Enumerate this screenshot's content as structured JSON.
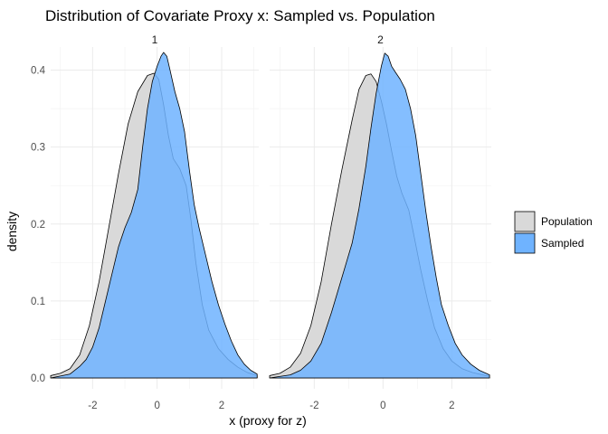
{
  "chart_data": {
    "type": "area",
    "title": "Distribution of Covariate Proxy x: Sampled vs. Population",
    "xlabel": "x (proxy for z)",
    "ylabel": "density",
    "xlim": [
      -3.3,
      3.15
    ],
    "ylim": [
      0,
      0.43
    ],
    "x_ticks": [
      -2,
      0,
      2
    ],
    "x_tick_labels": [
      "-2",
      "0",
      "2"
    ],
    "y_ticks": [
      0.0,
      0.1,
      0.2,
      0.3,
      0.4
    ],
    "y_tick_labels": [
      "0.0",
      "0.1",
      "0.2",
      "0.3",
      "0.4"
    ],
    "grid": true,
    "legend_position": "right",
    "legend": [
      {
        "name": "Population",
        "color": "#d9d9d9"
      },
      {
        "name": "Sampled",
        "color": "#6fb3ff"
      }
    ],
    "panels": [
      {
        "label": "1",
        "series": [
          {
            "name": "Population",
            "points": [
              [
                -3.3,
                0.003
              ],
              [
                -3.0,
                0.006
              ],
              [
                -2.7,
                0.012
              ],
              [
                -2.4,
                0.03
              ],
              [
                -2.1,
                0.068
              ],
              [
                -1.8,
                0.125
              ],
              [
                -1.5,
                0.195
              ],
              [
                -1.2,
                0.265
              ],
              [
                -0.9,
                0.33
              ],
              [
                -0.6,
                0.372
              ],
              [
                -0.3,
                0.393
              ],
              [
                -0.1,
                0.396
              ],
              [
                0.05,
                0.388
              ],
              [
                0.2,
                0.355
              ],
              [
                0.35,
                0.315
              ],
              [
                0.5,
                0.285
              ],
              [
                0.7,
                0.272
              ],
              [
                0.9,
                0.25
              ],
              [
                1.05,
                0.205
              ],
              [
                1.2,
                0.15
              ],
              [
                1.4,
                0.095
              ],
              [
                1.6,
                0.062
              ],
              [
                1.9,
                0.038
              ],
              [
                2.2,
                0.024
              ],
              [
                2.5,
                0.014
              ],
              [
                2.8,
                0.007
              ],
              [
                3.1,
                0.003
              ]
            ]
          },
          {
            "name": "Sampled",
            "points": [
              [
                -3.3,
                0.0
              ],
              [
                -2.7,
                0.005
              ],
              [
                -2.4,
                0.015
              ],
              [
                -2.2,
                0.024
              ],
              [
                -2.0,
                0.04
              ],
              [
                -1.8,
                0.065
              ],
              [
                -1.6,
                0.1
              ],
              [
                -1.4,
                0.135
              ],
              [
                -1.2,
                0.17
              ],
              [
                -1.0,
                0.195
              ],
              [
                -0.8,
                0.215
              ],
              [
                -0.6,
                0.245
              ],
              [
                -0.45,
                0.3
              ],
              [
                -0.3,
                0.35
              ],
              [
                -0.15,
                0.385
              ],
              [
                0.0,
                0.405
              ],
              [
                0.12,
                0.418
              ],
              [
                0.2,
                0.423
              ],
              [
                0.3,
                0.418
              ],
              [
                0.4,
                0.4
              ],
              [
                0.55,
                0.372
              ],
              [
                0.7,
                0.35
              ],
              [
                0.85,
                0.32
              ],
              [
                1.0,
                0.27
              ],
              [
                1.15,
                0.225
              ],
              [
                1.3,
                0.195
              ],
              [
                1.5,
                0.16
              ],
              [
                1.7,
                0.125
              ],
              [
                1.9,
                0.095
              ],
              [
                2.1,
                0.07
              ],
              [
                2.3,
                0.048
              ],
              [
                2.5,
                0.03
              ],
              [
                2.7,
                0.018
              ],
              [
                2.9,
                0.01
              ],
              [
                3.1,
                0.005
              ]
            ]
          }
        ]
      },
      {
        "label": "2",
        "series": [
          {
            "name": "Population",
            "points": [
              [
                -3.3,
                0.003
              ],
              [
                -3.0,
                0.006
              ],
              [
                -2.7,
                0.014
              ],
              [
                -2.4,
                0.032
              ],
              [
                -2.1,
                0.068
              ],
              [
                -1.8,
                0.125
              ],
              [
                -1.5,
                0.2
              ],
              [
                -1.2,
                0.27
              ],
              [
                -0.9,
                0.335
              ],
              [
                -0.7,
                0.375
              ],
              [
                -0.5,
                0.393
              ],
              [
                -0.35,
                0.395
              ],
              [
                -0.2,
                0.385
              ],
              [
                -0.05,
                0.36
              ],
              [
                0.1,
                0.33
              ],
              [
                0.25,
                0.295
              ],
              [
                0.4,
                0.262
              ],
              [
                0.55,
                0.24
              ],
              [
                0.75,
                0.218
              ],
              [
                0.9,
                0.185
              ],
              [
                1.1,
                0.14
              ],
              [
                1.3,
                0.1
              ],
              [
                1.5,
                0.065
              ],
              [
                1.75,
                0.038
              ],
              [
                2.0,
                0.022
              ],
              [
                2.3,
                0.012
              ],
              [
                2.6,
                0.007
              ],
              [
                3.1,
                0.002
              ]
            ]
          },
          {
            "name": "Sampled",
            "points": [
              [
                -3.3,
                0.0
              ],
              [
                -2.7,
                0.004
              ],
              [
                -2.4,
                0.01
              ],
              [
                -2.1,
                0.022
              ],
              [
                -1.8,
                0.045
              ],
              [
                -1.5,
                0.085
              ],
              [
                -1.2,
                0.13
              ],
              [
                -0.9,
                0.175
              ],
              [
                -0.7,
                0.22
              ],
              [
                -0.5,
                0.275
              ],
              [
                -0.35,
                0.325
              ],
              [
                -0.2,
                0.37
              ],
              [
                -0.05,
                0.405
              ],
              [
                0.05,
                0.422
              ],
              [
                0.15,
                0.418
              ],
              [
                0.25,
                0.405
              ],
              [
                0.35,
                0.398
              ],
              [
                0.5,
                0.388
              ],
              [
                0.65,
                0.375
              ],
              [
                0.8,
                0.35
              ],
              [
                0.95,
                0.315
              ],
              [
                1.1,
                0.265
              ],
              [
                1.25,
                0.215
              ],
              [
                1.4,
                0.17
              ],
              [
                1.55,
                0.13
              ],
              [
                1.7,
                0.095
              ],
              [
                1.9,
                0.068
              ],
              [
                2.1,
                0.045
              ],
              [
                2.3,
                0.03
              ],
              [
                2.55,
                0.018
              ],
              [
                2.8,
                0.01
              ],
              [
                3.1,
                0.004
              ]
            ]
          }
        ]
      }
    ]
  },
  "colors": {
    "population_fill": "#d9d9d9",
    "sampled_fill": "#6fb3ff",
    "outline": "#000000"
  }
}
